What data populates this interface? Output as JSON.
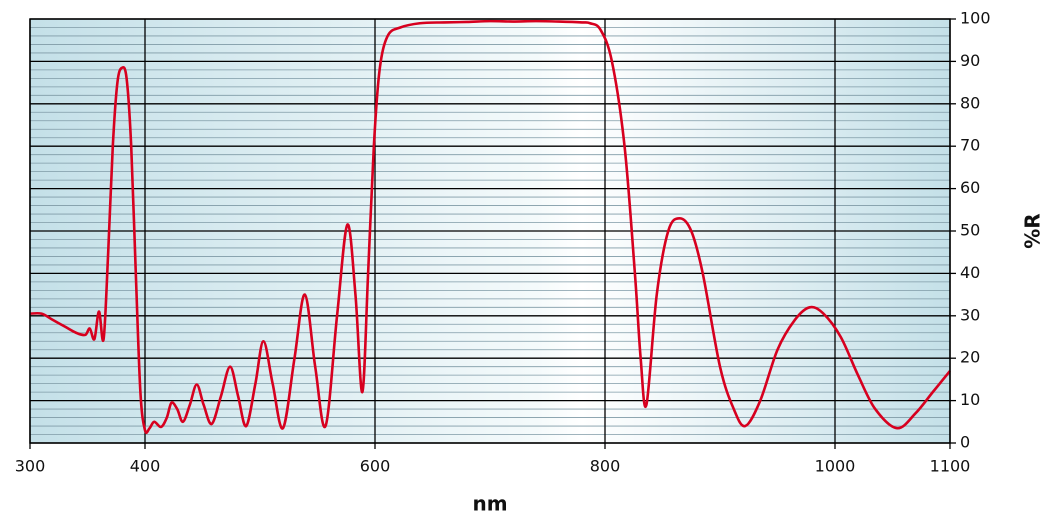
{
  "chart_data": {
    "type": "line",
    "x_label": "nm",
    "y_label": "%R",
    "series": [
      {
        "color": "#d7001f",
        "x": [
          300,
          310,
          320,
          330,
          340,
          348,
          352,
          356,
          360,
          364,
          368,
          372,
          376,
          380,
          384,
          388,
          392,
          396,
          400,
          404,
          408,
          414,
          419,
          423,
          428,
          433,
          439,
          445,
          451,
          458,
          466,
          474,
          481,
          488,
          496,
          503,
          511,
          520,
          530,
          539,
          548,
          557,
          567,
          576,
          583,
          589,
          594,
          599,
          604,
          611,
          622,
          639,
          660,
          680,
          700,
          720,
          740,
          760,
          780,
          787,
          796,
          806,
          817,
          826,
          831,
          836,
          845,
          855,
          865,
          875,
          885,
          900,
          912,
          922,
          935,
          950,
          965,
          978,
          990,
          1005,
          1020,
          1035,
          1054,
          1070,
          1085,
          1100
        ],
        "values": [
          30.5,
          30.5,
          29,
          27.5,
          26,
          25.5,
          27,
          24.5,
          31,
          24.5,
          45,
          70,
          85,
          88.5,
          86,
          70,
          40,
          12,
          3,
          3.5,
          5,
          3.8,
          6,
          9.5,
          8,
          5,
          9,
          13.8,
          9,
          4.5,
          11,
          18,
          11,
          4,
          14,
          24,
          14,
          3.5,
          20,
          35,
          18,
          4,
          30,
          51.5,
          35,
          12,
          40,
          70,
          88,
          96,
          98,
          99,
          99.2,
          99.3,
          99.5,
          99.4,
          99.5,
          99.4,
          99.2,
          99,
          97.5,
          90,
          70,
          40,
          20,
          9,
          35,
          50,
          53,
          50,
          40,
          18,
          8,
          4,
          10,
          22,
          29,
          32,
          30.5,
          25,
          16,
          8,
          3.5,
          7,
          12,
          17
        ]
      }
    ],
    "xlim": [
      300,
      1100
    ],
    "xticks": [
      300,
      400,
      600,
      800,
      1000,
      1100
    ],
    "ylim": [
      0,
      100
    ],
    "yticks": [
      0,
      10,
      20,
      30,
      40,
      50,
      60,
      70,
      80,
      90,
      100
    ],
    "grid": true
  }
}
